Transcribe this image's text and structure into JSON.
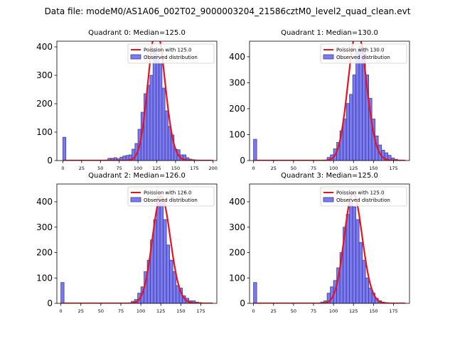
{
  "figure": {
    "suptitle": "Data file: modeM0/AS1A06_002T02_9000003204_21586cztM0_level2_quad_clean.evt"
  },
  "colors": {
    "bar_fill": "#7b7bee",
    "bar_edge": "#3a3aa8",
    "fit_line": "#e8131b"
  },
  "chart_data": [
    {
      "type": "bar",
      "title": "Quadrant 0: Median=125.0",
      "xlabel": "",
      "ylabel": "",
      "xlim": [
        -8,
        205
      ],
      "ylim": [
        0,
        420
      ],
      "xticks": [
        "0",
        "25",
        "50",
        "75",
        "100",
        "125",
        "150",
        "175",
        "200"
      ],
      "yticks": [
        "0",
        "100",
        "200",
        "300",
        "400"
      ],
      "bin_width": 4,
      "bin_starts": [
        0,
        4,
        8,
        12,
        16,
        20,
        24,
        28,
        32,
        36,
        40,
        44,
        48,
        52,
        56,
        60,
        64,
        68,
        72,
        76,
        80,
        84,
        88,
        92,
        96,
        100,
        104,
        108,
        112,
        116,
        120,
        124,
        128,
        132,
        136,
        140,
        144,
        148,
        152,
        156,
        160,
        164,
        168,
        172,
        176,
        180,
        184,
        188,
        192,
        196
      ],
      "counts": [
        82,
        0,
        0,
        0,
        0,
        0,
        0,
        0,
        0,
        0,
        0,
        0,
        0,
        0,
        2,
        8,
        8,
        10,
        6,
        12,
        16,
        18,
        20,
        40,
        60,
        110,
        170,
        235,
        265,
        300,
        395,
        375,
        340,
        255,
        175,
        120,
        90,
        40,
        38,
        20,
        20,
        10,
        5,
        3,
        2,
        1,
        1,
        0,
        0,
        0
      ],
      "legend": {
        "fit": "Poission with 125.0",
        "observed": "Observed distribution"
      },
      "fit_lambda": 125.0
    },
    {
      "type": "bar",
      "title": "Quadrant 1: Median=130.0",
      "xlabel": "",
      "ylabel": "",
      "xlim": [
        -5,
        195
      ],
      "ylim": [
        0,
        460
      ],
      "xticks": [
        "0",
        "25",
        "50",
        "75",
        "100",
        "125",
        "150",
        "175"
      ],
      "yticks": [
        "0",
        "100",
        "200",
        "300",
        "400"
      ],
      "bin_width": 4,
      "bin_starts": [
        0,
        4,
        8,
        12,
        16,
        20,
        24,
        28,
        32,
        36,
        40,
        44,
        48,
        52,
        56,
        60,
        64,
        68,
        72,
        76,
        80,
        84,
        88,
        92,
        96,
        100,
        104,
        108,
        112,
        116,
        120,
        124,
        128,
        132,
        136,
        140,
        144,
        148,
        152,
        156,
        160,
        164,
        168,
        172,
        176,
        180,
        184
      ],
      "counts": [
        82,
        0,
        0,
        0,
        0,
        0,
        0,
        0,
        0,
        0,
        0,
        0,
        0,
        0,
        0,
        0,
        0,
        0,
        0,
        0,
        0,
        0,
        0,
        12,
        22,
        45,
        70,
        115,
        160,
        220,
        255,
        330,
        420,
        440,
        430,
        330,
        240,
        160,
        95,
        60,
        40,
        30,
        20,
        10,
        5,
        2,
        1
      ],
      "legend": {
        "fit": "Poission with 130.0",
        "observed": "Observed distribution"
      },
      "fit_lambda": 130.0
    },
    {
      "type": "bar",
      "title": "Quadrant 2: Median=126.0",
      "xlabel": "",
      "ylabel": "",
      "xlim": [
        -5,
        195
      ],
      "ylim": [
        0,
        470
      ],
      "xticks": [
        "0",
        "25",
        "50",
        "75",
        "100",
        "125",
        "150",
        "175"
      ],
      "yticks": [
        "0",
        "100",
        "200",
        "300",
        "400"
      ],
      "bin_width": 4,
      "bin_starts": [
        0,
        4,
        8,
        12,
        16,
        20,
        24,
        28,
        32,
        36,
        40,
        44,
        48,
        52,
        56,
        60,
        64,
        68,
        72,
        76,
        80,
        84,
        88,
        92,
        96,
        100,
        104,
        108,
        112,
        116,
        120,
        124,
        128,
        132,
        136,
        140,
        144,
        148,
        152,
        156,
        160,
        164,
        168,
        172,
        176,
        180,
        184
      ],
      "counts": [
        82,
        0,
        0,
        0,
        0,
        0,
        0,
        0,
        0,
        0,
        0,
        0,
        0,
        0,
        0,
        0,
        0,
        0,
        0,
        0,
        0,
        0,
        8,
        15,
        40,
        65,
        125,
        170,
        250,
        330,
        420,
        400,
        330,
        230,
        170,
        125,
        70,
        60,
        30,
        20,
        10,
        10,
        5,
        3,
        0,
        0,
        0
      ],
      "legend": {
        "fit": "Poission with 126.0",
        "observed": "Observed distribution"
      },
      "fit_lambda": 126.0
    },
    {
      "type": "bar",
      "title": "Quadrant 3: Median=125.0",
      "xlabel": "",
      "ylabel": "",
      "xlim": [
        -5,
        195
      ],
      "ylim": [
        0,
        470
      ],
      "xticks": [
        "0",
        "25",
        "50",
        "75",
        "100",
        "125",
        "150",
        "175"
      ],
      "yticks": [
        "0",
        "100",
        "200",
        "300",
        "400"
      ],
      "bin_width": 4,
      "bin_starts": [
        0,
        4,
        8,
        12,
        16,
        20,
        24,
        28,
        32,
        36,
        40,
        44,
        48,
        52,
        56,
        60,
        64,
        68,
        72,
        76,
        80,
        84,
        88,
        92,
        96,
        100,
        104,
        108,
        112,
        116,
        120,
        124,
        128,
        132,
        136,
        140,
        144,
        148,
        152,
        156,
        160,
        164,
        168,
        172,
        176,
        180,
        184
      ],
      "counts": [
        82,
        0,
        0,
        0,
        0,
        0,
        0,
        0,
        0,
        0,
        0,
        0,
        0,
        0,
        0,
        0,
        0,
        0,
        0,
        0,
        0,
        5,
        10,
        40,
        65,
        90,
        140,
        200,
        300,
        350,
        400,
        380,
        330,
        240,
        170,
        100,
        60,
        40,
        20,
        10,
        5,
        3,
        1,
        0,
        0,
        0,
        0
      ],
      "legend": {
        "fit": "Poission with 125.0",
        "observed": "Observed distribution"
      },
      "fit_lambda": 125.0
    }
  ]
}
